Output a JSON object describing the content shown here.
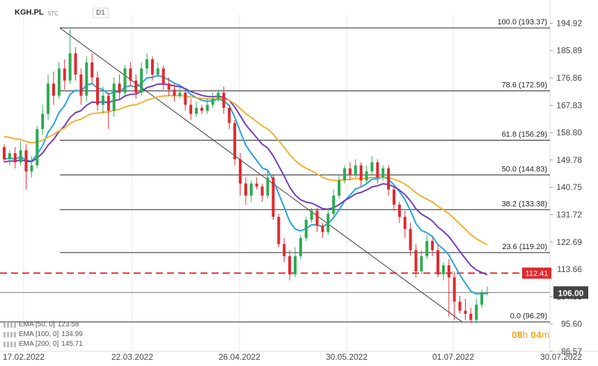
{
  "header": {
    "ticker": "KGH.PL",
    "type": "STC",
    "timeframe": "D1"
  },
  "timer": {
    "hours": "08",
    "h_label": "h",
    "minutes": "04",
    "m_label": "m"
  },
  "legend": [
    {
      "label": "EMA  [50,  0]",
      "value": "123.58"
    },
    {
      "label": "EMA  [100,  0]",
      "value": "134.99"
    },
    {
      "label": "EMA  [200,  0]",
      "value": "145.71"
    }
  ],
  "colors": {
    "up": "#2aab50",
    "down": "#e0282e",
    "ema50": "#21a4e0",
    "ema100": "#6f3bbf",
    "ema200": "#f0b030",
    "price_tag": "#444444",
    "level_tag": "#e0282e"
  },
  "chart_data": {
    "type": "candlestick",
    "symbol": "KGH.PL",
    "timeframe": "D1",
    "y_axis_ticks": [
      194.92,
      185.89,
      176.86,
      167.83,
      158.8,
      149.78,
      140.75,
      131.72,
      122.69,
      113.66,
      104.63,
      95.6,
      86.57
    ],
    "x_axis_ticks": [
      "17.02.2022",
      "22.03.2022",
      "26.04.2022",
      "30.05.2022",
      "01.07.2022",
      "30.07.2022"
    ],
    "ylim": [
      86.57,
      198.0
    ],
    "fibonacci_levels": [
      {
        "label": "100.0 (193.37)",
        "value": 193.37
      },
      {
        "label": "78.6 (172.59)",
        "value": 172.59
      },
      {
        "label": "61.8 (156.29)",
        "value": 156.29
      },
      {
        "label": "50.0 (144.83)",
        "value": 144.83
      },
      {
        "label": "38.2 (133.38)",
        "value": 133.38
      },
      {
        "label": "23.6 (119.20)",
        "value": 119.2
      },
      {
        "label": "0.0 (96.29)",
        "value": 96.29
      }
    ],
    "resistance_level": {
      "value": 112.41,
      "label": "112.41"
    },
    "current_price": {
      "value": 106.0,
      "label": "106.00"
    },
    "trendline": {
      "from": {
        "date": "2022-03-08",
        "value": 193.37
      },
      "to": {
        "date": "2022-07-08",
        "value": 96.29
      }
    },
    "indicators": [
      {
        "name": "EMA 50",
        "last": 123.58
      },
      {
        "name": "EMA 100",
        "last": 134.99
      },
      {
        "name": "EMA 200",
        "last": 145.71
      }
    ],
    "candles": [
      [
        154,
        150,
        155,
        149
      ],
      [
        150,
        152,
        153,
        148
      ],
      [
        152,
        149,
        154,
        147
      ],
      [
        149,
        153,
        156,
        148
      ],
      [
        153,
        146,
        155,
        140
      ],
      [
        146,
        148,
        151,
        144
      ],
      [
        148,
        160,
        161,
        147
      ],
      [
        160,
        165,
        168,
        158
      ],
      [
        165,
        175,
        178,
        163
      ],
      [
        175,
        171,
        179,
        168
      ],
      [
        171,
        180,
        182,
        170
      ],
      [
        180,
        176,
        183,
        173
      ],
      [
        176,
        185,
        193,
        175
      ],
      [
        185,
        178,
        187,
        176
      ],
      [
        178,
        171,
        180,
        168
      ],
      [
        171,
        182,
        184,
        169
      ],
      [
        182,
        177,
        185,
        175
      ],
      [
        177,
        168,
        179,
        166
      ],
      [
        168,
        171,
        174,
        165
      ],
      [
        171,
        166,
        172,
        160
      ],
      [
        166,
        175,
        177,
        164
      ],
      [
        175,
        172,
        178,
        170
      ],
      [
        172,
        180,
        181,
        171
      ],
      [
        180,
        176,
        182,
        174
      ],
      [
        176,
        172,
        178,
        170
      ],
      [
        172,
        180,
        182,
        171
      ],
      [
        180,
        183,
        185,
        178
      ],
      [
        183,
        178,
        184,
        176
      ],
      [
        178,
        180,
        182,
        177
      ],
      [
        180,
        175,
        181,
        173
      ],
      [
        175,
        173,
        177,
        171
      ],
      [
        173,
        171,
        175,
        169
      ],
      [
        171,
        172,
        174,
        170
      ],
      [
        172,
        168,
        173,
        166
      ],
      [
        168,
        165,
        170,
        163
      ],
      [
        165,
        167,
        169,
        164
      ],
      [
        167,
        166,
        168,
        165
      ],
      [
        166,
        168,
        170,
        165
      ],
      [
        168,
        170,
        172,
        167
      ],
      [
        170,
        172,
        173,
        169
      ],
      [
        172,
        167,
        174,
        165
      ],
      [
        167,
        162,
        168,
        160
      ],
      [
        162,
        150,
        163,
        148
      ],
      [
        150,
        142,
        152,
        138
      ],
      [
        142,
        138,
        144,
        135
      ],
      [
        138,
        142,
        143,
        136
      ],
      [
        142,
        141,
        144,
        140
      ],
      [
        141,
        138,
        142,
        136
      ],
      [
        138,
        144,
        146,
        137
      ],
      [
        144,
        131,
        145,
        130
      ],
      [
        131,
        122,
        132,
        121
      ],
      [
        122,
        118,
        124,
        116
      ],
      [
        118,
        112,
        120,
        110
      ],
      [
        112,
        118,
        121,
        111
      ],
      [
        118,
        124,
        125,
        117
      ],
      [
        124,
        130,
        131,
        123
      ],
      [
        130,
        133,
        134,
        129
      ],
      [
        133,
        128,
        134,
        126
      ],
      [
        128,
        126,
        129,
        124
      ],
      [
        126,
        132,
        134,
        125
      ],
      [
        132,
        138,
        140,
        131
      ],
      [
        138,
        143,
        145,
        137
      ],
      [
        143,
        147,
        148,
        142
      ],
      [
        147,
        145,
        149,
        143
      ],
      [
        145,
        148,
        150,
        144
      ],
      [
        148,
        143,
        149,
        141
      ],
      [
        143,
        146,
        148,
        142
      ],
      [
        146,
        149,
        151,
        145
      ],
      [
        149,
        144,
        150,
        142
      ],
      [
        144,
        147,
        148,
        143
      ],
      [
        147,
        140,
        148,
        138
      ],
      [
        140,
        135,
        141,
        133
      ],
      [
        135,
        131,
        136,
        129
      ],
      [
        131,
        127,
        133,
        124
      ],
      [
        127,
        120,
        129,
        118
      ],
      [
        120,
        113,
        122,
        111
      ],
      [
        113,
        118,
        120,
        112
      ],
      [
        118,
        123,
        125,
        117
      ],
      [
        123,
        120,
        124,
        118
      ],
      [
        120,
        112,
        122,
        111
      ],
      [
        112,
        115,
        116,
        110
      ],
      [
        115,
        111,
        117,
        98
      ],
      [
        111,
        103,
        113,
        97
      ],
      [
        103,
        100,
        105,
        99
      ],
      [
        100,
        99,
        104,
        97
      ],
      [
        99,
        97,
        101,
        96
      ],
      [
        97,
        102,
        104,
        96
      ],
      [
        102,
        106,
        107,
        101
      ],
      [
        106,
        106,
        108,
        105
      ]
    ]
  }
}
